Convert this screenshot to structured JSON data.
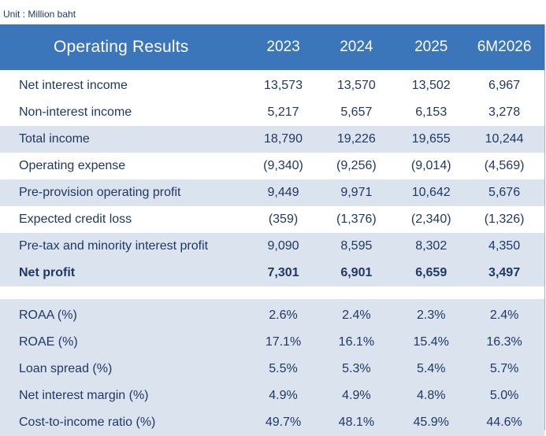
{
  "unit_note": "Unit : Million baht",
  "header": {
    "title": "Operating Results",
    "columns": [
      "2023",
      "2024",
      "2025",
      "6M2026"
    ]
  },
  "rows": [
    {
      "label": "Net interest income",
      "values": [
        "13,573",
        "13,570",
        "13,502",
        "6,967"
      ]
    },
    {
      "label": "Non-interest income",
      "values": [
        "5,217",
        "5,657",
        "6,153",
        "3,278"
      ]
    },
    {
      "label": "Total income",
      "values": [
        "18,790",
        "19,226",
        "19,655",
        "10,244"
      ]
    },
    {
      "label": "Operating expense",
      "values": [
        "(9,340)",
        "(9,256)",
        "(9,014)",
        "(4,569)"
      ]
    },
    {
      "label": "Pre-provision operating profit",
      "values": [
        "9,449",
        "9,971",
        "10,642",
        "5,676"
      ]
    },
    {
      "label": "Expected credit loss",
      "values": [
        "(359)",
        "(1,376)",
        "(2,340)",
        "(1,326)"
      ]
    },
    {
      "label": "Pre-tax and minority interest profit",
      "values": [
        "9,090",
        "8,595",
        "8,302",
        "4,350"
      ]
    },
    {
      "label": "Net profit",
      "values": [
        "7,301",
        "6,901",
        "6,659",
        "3,497"
      ]
    }
  ],
  "ratios": [
    {
      "label": "ROAA (%)",
      "values": [
        "2.6%",
        "2.4%",
        "2.3%",
        "2.4%"
      ]
    },
    {
      "label": "ROAE (%)",
      "values": [
        "17.1%",
        "16.1%",
        "15.4%",
        "16.3%"
      ]
    },
    {
      "label": "Loan spread (%)",
      "values": [
        "5.5%",
        "5.3%",
        "5.4%",
        "5.7%"
      ]
    },
    {
      "label": "Net interest margin (%)",
      "values": [
        "4.9%",
        "4.9%",
        "4.8%",
        "5.0%"
      ]
    },
    {
      "label": "Cost-to-income ratio (%)",
      "values": [
        "49.7%",
        "48.1%",
        "45.9%",
        "44.6%"
      ]
    }
  ],
  "colors": {
    "header_bg": "#3b75ba",
    "shade_bg": "#dbe3ef",
    "text": "#1f3864"
  }
}
